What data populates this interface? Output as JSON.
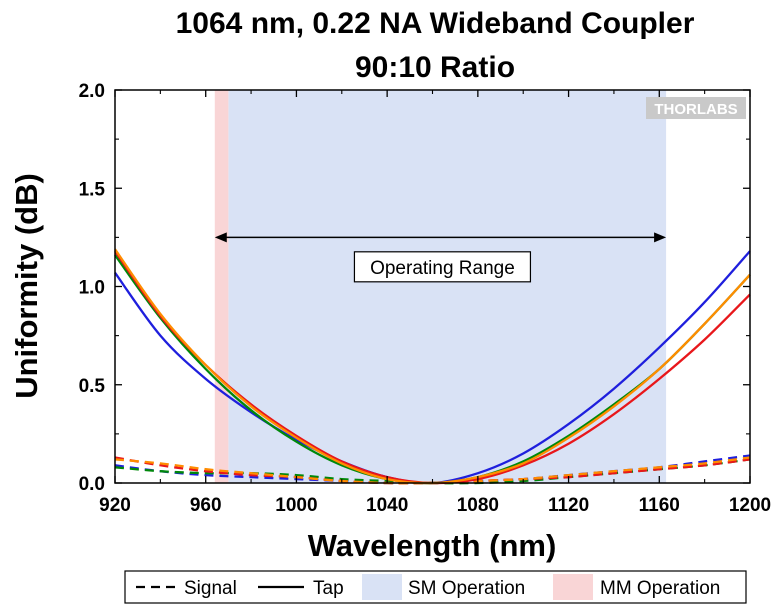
{
  "chart_data": {
    "type": "line",
    "title": [
      "1064 nm, 0.22 NA Wideband Coupler",
      "90:10 Ratio"
    ],
    "xlabel": "Wavelength (nm)",
    "ylabel": "Uniformity (dB)",
    "xlim": [
      920,
      1200
    ],
    "ylim": [
      0.0,
      2.0
    ],
    "xticks": [
      920,
      960,
      1000,
      1040,
      1080,
      1120,
      1160,
      1200
    ],
    "xtick_labels": [
      "920",
      "960",
      "1000",
      "1040",
      "1080",
      "1120",
      "1160",
      "1200"
    ],
    "yticks": [
      0.0,
      0.5,
      1.0,
      1.5,
      2.0
    ],
    "ytick_labels": [
      "0.0",
      "0.5",
      "1.0",
      "1.5",
      "2.0"
    ],
    "grid": false,
    "legend_position": "bottom",
    "watermark": "THORLABS",
    "regions": [
      {
        "name": "SM Operation",
        "x": [
          970,
          1163
        ],
        "color": "#d9e2f5"
      },
      {
        "name": "MM Operation",
        "x": [
          964,
          970
        ],
        "color": "#f9d5d6"
      }
    ],
    "annotations": [
      {
        "text": "Operating Range",
        "x": [
          964,
          1163
        ],
        "y_arrow": 1.25,
        "y_text": 1.09
      }
    ],
    "legend": [
      {
        "label": "Signal",
        "style": "dashed"
      },
      {
        "label": "Tap",
        "style": "solid"
      },
      {
        "label": "SM Operation",
        "style": "patch-blue"
      },
      {
        "label": "MM Operation",
        "style": "patch-red"
      }
    ],
    "x": [
      920,
      940,
      960,
      980,
      1000,
      1020,
      1040,
      1060,
      1080,
      1100,
      1120,
      1140,
      1160,
      1180,
      1200
    ],
    "series": [
      {
        "kind": "Tap",
        "color": "#1f1fdd",
        "style": "solid",
        "values": [
          1.07,
          0.75,
          0.53,
          0.36,
          0.22,
          0.11,
          0.03,
          0.0,
          0.05,
          0.15,
          0.3,
          0.48,
          0.69,
          0.92,
          1.18
        ]
      },
      {
        "kind": "Tap",
        "color": "#00880a",
        "style": "solid",
        "values": [
          1.16,
          0.84,
          0.58,
          0.37,
          0.21,
          0.09,
          0.02,
          0.0,
          0.03,
          0.11,
          0.24,
          0.4,
          0.58,
          0.81,
          1.06
        ]
      },
      {
        "kind": "Tap",
        "color": "#e8171b",
        "style": "solid",
        "values": [
          1.18,
          0.85,
          0.6,
          0.4,
          0.24,
          0.11,
          0.03,
          0.0,
          0.02,
          0.09,
          0.2,
          0.35,
          0.53,
          0.73,
          0.96
        ]
      },
      {
        "kind": "Tap",
        "color": "#ff8c00",
        "style": "solid",
        "values": [
          1.19,
          0.86,
          0.6,
          0.39,
          0.23,
          0.1,
          0.02,
          0.0,
          0.03,
          0.1,
          0.23,
          0.39,
          0.58,
          0.81,
          1.06
        ]
      },
      {
        "kind": "Signal",
        "color": "#1f1fdd",
        "style": "dashed",
        "values": [
          0.09,
          0.06,
          0.04,
          0.03,
          0.02,
          0.01,
          0.0,
          0.0,
          0.01,
          0.02,
          0.04,
          0.06,
          0.08,
          0.11,
          0.14
        ]
      },
      {
        "kind": "Signal",
        "color": "#00880a",
        "style": "dashed",
        "values": [
          0.08,
          0.06,
          0.05,
          0.05,
          0.04,
          0.02,
          0.01,
          0.0,
          0.0,
          0.01,
          0.03,
          0.05,
          0.07,
          0.09,
          0.12
        ]
      },
      {
        "kind": "Signal",
        "color": "#e8171b",
        "style": "dashed",
        "values": [
          0.13,
          0.09,
          0.06,
          0.04,
          0.03,
          0.01,
          0.0,
          0.0,
          0.01,
          0.02,
          0.03,
          0.05,
          0.07,
          0.09,
          0.12
        ]
      },
      {
        "kind": "Signal",
        "color": "#ff8c00",
        "style": "dashed",
        "values": [
          0.12,
          0.1,
          0.07,
          0.05,
          0.03,
          0.01,
          0.0,
          0.0,
          0.01,
          0.02,
          0.04,
          0.06,
          0.08,
          0.1,
          0.13
        ]
      }
    ]
  }
}
